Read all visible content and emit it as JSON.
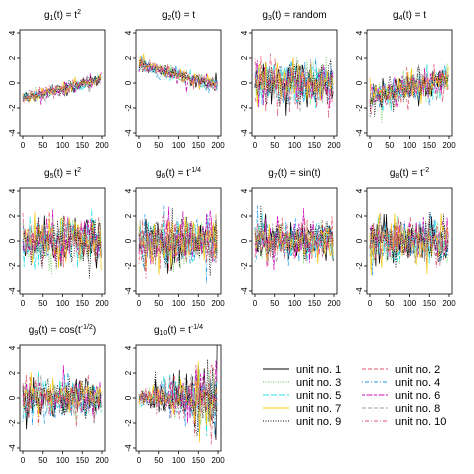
{
  "chart_data": {
    "type": "line",
    "layout": {
      "rows": 3,
      "cols": 4
    },
    "x_axis": {
      "range": [
        0,
        200
      ],
      "ticks": [
        0,
        50,
        100,
        150,
        200
      ]
    },
    "y_axis": {
      "range": [
        -4,
        4
      ],
      "ticks": [
        -4,
        -2,
        0,
        2,
        4
      ]
    },
    "grid": false,
    "legend": {
      "placement": "bottom-right",
      "columns": 2
    },
    "panels": [
      {
        "id": 1,
        "title_main": "g1(t) = t",
        "title_sup": "2",
        "trend": "increasing",
        "noise": 0.25
      },
      {
        "id": 2,
        "title_main": "g2(t) = t",
        "title_sup": "",
        "trend": "decreasing",
        "noise": 0.3
      },
      {
        "id": 3,
        "title_main": "g3(t) = random",
        "title_sup": "",
        "trend": "flat",
        "noise": 0.9
      },
      {
        "id": 4,
        "title_main": "g4(t) = t",
        "title_sup": "",
        "trend": "increasing",
        "noise": 0.6
      },
      {
        "id": 5,
        "title_main": "g5(t) = t",
        "title_sup": "2",
        "trend": "flat",
        "noise": 0.9
      },
      {
        "id": 6,
        "title_main": "g6(t) = t",
        "title_sup": "-1/4",
        "trend": "flat",
        "noise": 1.0
      },
      {
        "id": 7,
        "title_main": "g7(t) = sin(t)",
        "title_sup": "",
        "trend": "flat",
        "noise": 0.8
      },
      {
        "id": 8,
        "title_main": "g8(t) = t",
        "title_sup": "-2",
        "trend": "flat",
        "noise": 0.9
      },
      {
        "id": 9,
        "title_main": "g9(t) = cos(t",
        "title_sup": "-1/2",
        "title_tail": ")",
        "trend": "flat",
        "noise": 0.8
      },
      {
        "id": 10,
        "title_main": "g10(t) = t",
        "title_sup": "-1/4",
        "trend": "widening",
        "noise": 0.7
      }
    ],
    "series": [
      {
        "name": "unit no. 1",
        "color": "#000000",
        "dash": "solid"
      },
      {
        "name": "unit no. 2",
        "color": "#df536b",
        "dash": "dashed"
      },
      {
        "name": "unit no. 3",
        "color": "#61d04f",
        "dash": "dotted"
      },
      {
        "name": "unit no. 4",
        "color": "#2297e6",
        "dash": "dotdash"
      },
      {
        "name": "unit no. 5",
        "color": "#28e2e5",
        "dash": "longdash"
      },
      {
        "name": "unit no. 6",
        "color": "#cd0bbc",
        "dash": "twodash"
      },
      {
        "name": "unit no. 7",
        "color": "#f5c710",
        "dash": "solid"
      },
      {
        "name": "unit no. 8",
        "color": "#9e9e9e",
        "dash": "dashed"
      },
      {
        "name": "unit no. 9",
        "color": "#000000",
        "dash": "dotted"
      },
      {
        "name": "unit no. 10",
        "color": "#df536b",
        "dash": "dotdash"
      }
    ]
  }
}
